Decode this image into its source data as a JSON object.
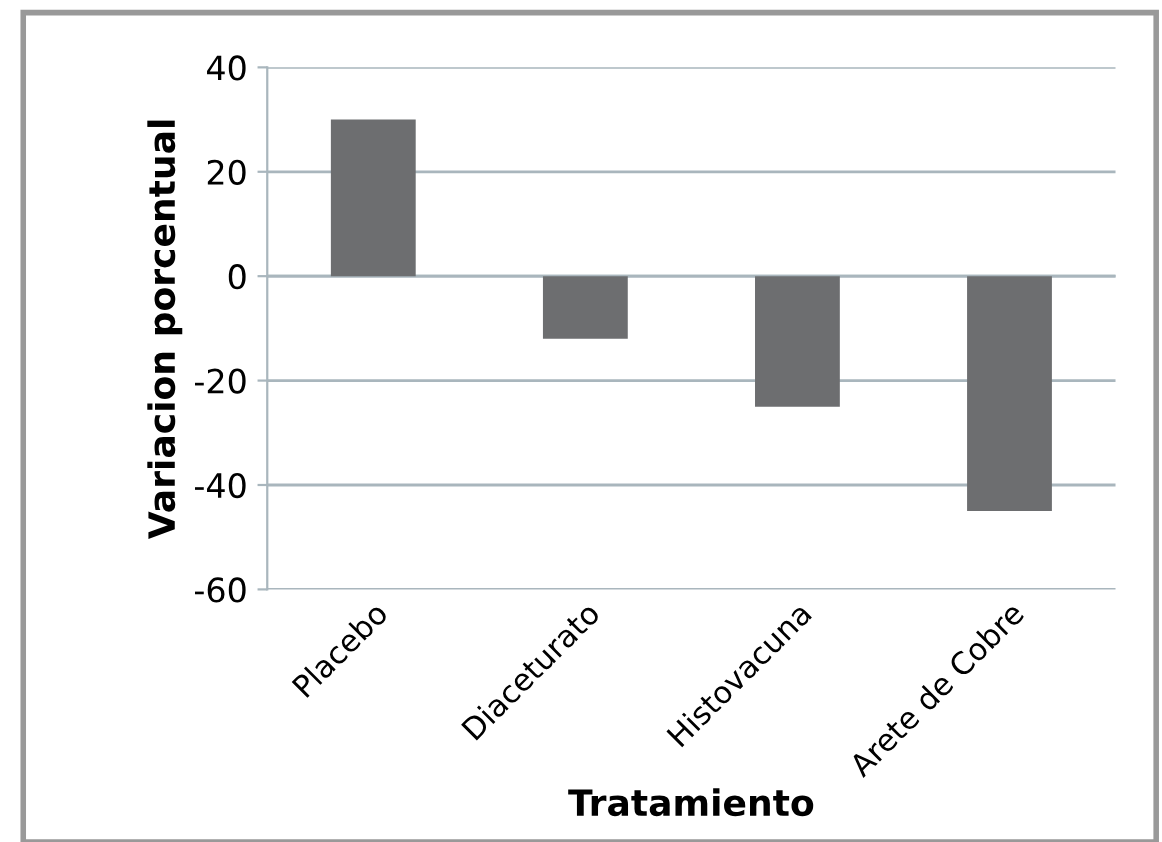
{
  "chart_data": {
    "type": "bar",
    "categories": [
      "Placebo",
      "Diaceturato",
      "Histovacuna",
      "Arete de Cobre"
    ],
    "values": [
      30,
      -12,
      -25,
      -45
    ],
    "color": "#6d6e70",
    "xlabel": "Tratamiento",
    "ylabel": "Variacion porcentual",
    "ylim": [
      -60,
      40
    ],
    "yticks": [
      -60,
      -40,
      -20,
      0,
      20,
      40
    ],
    "grid": "y"
  }
}
